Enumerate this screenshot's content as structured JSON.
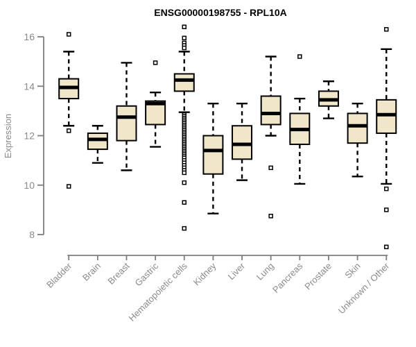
{
  "chart_data": {
    "type": "boxplot",
    "title": "ENSG00000198755 - RPL10A",
    "ylabel": "Expression",
    "yticks": [
      16,
      14,
      12,
      10,
      8
    ],
    "ylim": [
      7.1,
      16.6
    ],
    "grid": false,
    "legend": "none",
    "colors": {
      "box_fill": "#f0e7ca",
      "box_stroke": "#000000",
      "median": "#000000",
      "whisker": "#000000",
      "outlier_fill": "#ffffff",
      "axis": "#7d7d7d",
      "tick_text": "#8a8a8a",
      "title_text": "#000000"
    },
    "categories": [
      "Bladder",
      "Brain",
      "Breast",
      "Gastric",
      "Hematopoietic cells",
      "Kidney",
      "Liver",
      "Lung",
      "Pancreas",
      "Prostate",
      "Skin",
      "Unknown / Other"
    ],
    "series": [
      {
        "name": "Bladder",
        "low": 12.4,
        "q1": 13.5,
        "median": 13.95,
        "q3": 14.3,
        "high": 15.4,
        "outliers": [
          16.1,
          12.2,
          9.95
        ]
      },
      {
        "name": "Brain",
        "low": 10.9,
        "q1": 11.45,
        "median": 11.85,
        "q3": 12.1,
        "high": 12.4,
        "outliers": []
      },
      {
        "name": "Breast",
        "low": 10.6,
        "q1": 11.8,
        "median": 12.75,
        "q3": 13.2,
        "high": 14.95,
        "outliers": []
      },
      {
        "name": "Gastric",
        "low": 11.55,
        "q1": 12.45,
        "median": 13.3,
        "q3": 13.4,
        "high": 13.75,
        "outliers": [
          14.95
        ]
      },
      {
        "name": "Hematopoietic cells",
        "low": 12.95,
        "q1": 13.8,
        "median": 14.25,
        "q3": 14.5,
        "high": 15.4,
        "outliers": [
          16.4,
          15.95,
          15.75,
          15.65,
          15.55,
          12.85,
          12.78,
          12.71,
          12.64,
          12.57,
          12.5,
          12.43,
          12.36,
          12.29,
          12.22,
          12.15,
          12.08,
          12.01,
          11.94,
          11.87,
          11.8,
          11.73,
          11.66,
          11.59,
          11.52,
          11.45,
          11.38,
          11.31,
          11.24,
          11.17,
          11.1,
          11.0,
          10.9,
          10.8,
          10.7,
          10.6,
          10.5,
          10.1,
          9.3,
          8.25
        ]
      },
      {
        "name": "Kidney",
        "low": 8.85,
        "q1": 10.45,
        "median": 11.4,
        "q3": 12.0,
        "high": 13.3,
        "outliers": []
      },
      {
        "name": "Liver",
        "low": 10.2,
        "q1": 11.05,
        "median": 11.65,
        "q3": 12.4,
        "high": 13.3,
        "outliers": []
      },
      {
        "name": "Lung",
        "low": 12.0,
        "q1": 12.45,
        "median": 12.9,
        "q3": 13.6,
        "high": 15.2,
        "outliers": [
          10.7,
          8.75
        ]
      },
      {
        "name": "Pancreas",
        "low": 10.05,
        "q1": 11.65,
        "median": 12.25,
        "q3": 12.9,
        "high": 13.5,
        "outliers": [
          15.2
        ]
      },
      {
        "name": "Prostate",
        "low": 12.7,
        "q1": 13.2,
        "median": 13.45,
        "q3": 13.8,
        "high": 14.2,
        "outliers": []
      },
      {
        "name": "Skin",
        "low": 10.35,
        "q1": 11.7,
        "median": 12.4,
        "q3": 12.9,
        "high": 13.3,
        "outliers": []
      },
      {
        "name": "Unknown / Other",
        "low": 10.05,
        "q1": 12.1,
        "median": 12.85,
        "q3": 13.45,
        "high": 15.5,
        "outliers": [
          16.3,
          9.85,
          9.0,
          7.5
        ]
      }
    ]
  }
}
